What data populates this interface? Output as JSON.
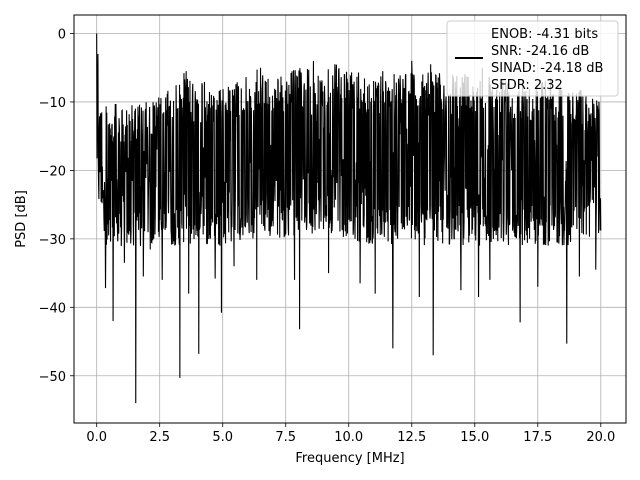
{
  "chart_data": {
    "type": "line",
    "title": "",
    "xlabel": "Frequency [MHz]",
    "ylabel": "PSD [dB]",
    "xlim": [
      -0.9,
      21.0
    ],
    "ylim": [
      -56.9,
      2.7
    ],
    "xticks": [
      0.0,
      2.5,
      5.0,
      7.5,
      10.0,
      12.5,
      15.0,
      17.5,
      20.0
    ],
    "xtick_labels": [
      "0.0",
      "2.5",
      "5.0",
      "7.5",
      "10.0",
      "12.5",
      "15.0",
      "17.5",
      "20.0"
    ],
    "yticks": [
      0,
      -10,
      -20,
      -30,
      -40,
      -50
    ],
    "ytick_labels": [
      "0",
      "−10",
      "−20",
      "−30",
      "−40",
      "−50"
    ],
    "grid": true,
    "legend_position": "top-right",
    "legend_text": [
      "ENOB: -4.31 bits",
      "SNR: -24.16 dB",
      "SINAD: -24.18 dB",
      "SFDR: 2.32"
    ],
    "series": [
      {
        "color": "#000000",
        "x_start": 0.0,
        "x_end": 20.0,
        "envelope_upper_x": [
          0.0,
          0.1,
          0.5,
          1.0,
          2.0,
          3.0,
          3.3,
          4.0,
          5.0,
          6.0,
          6.5,
          7.0,
          8.0,
          8.5,
          9.0,
          9.5,
          10.0,
          11.0,
          12.0,
          13.0,
          14.0,
          15.0,
          16.0,
          17.0,
          18.0,
          19.0,
          20.0
        ],
        "envelope_upper_y": [
          0.0,
          -9.5,
          -10.0,
          -10.5,
          -10.0,
          -8.0,
          -5.5,
          -6.5,
          -8.0,
          -6.0,
          -5.0,
          -6.5,
          -5.0,
          -4.0,
          -5.5,
          -4.5,
          -5.5,
          -6.0,
          -5.0,
          -5.5,
          -6.0,
          -5.5,
          -6.0,
          -7.0,
          -6.5,
          -8.0,
          -9.0
        ],
        "envelope_lower_x": [
          0.0,
          0.5,
          1.0,
          2.0,
          3.0,
          5.0,
          7.0,
          9.0,
          11.0,
          13.0,
          15.0,
          17.0,
          19.0,
          20.0
        ],
        "envelope_lower_y": [
          -24.0,
          -33.0,
          -31.0,
          -32.0,
          -31.0,
          -31.0,
          -30.0,
          -29.0,
          -31.0,
          -31.0,
          -31.0,
          -31.0,
          -31.0,
          -29.0
        ],
        "dips": [
          {
            "x": 0.35,
            "y": -37.2
          },
          {
            "x": 0.65,
            "y": -42.0
          },
          {
            "x": 1.1,
            "y": -33.5
          },
          {
            "x": 1.55,
            "y": -54.0
          },
          {
            "x": 1.85,
            "y": -35.5
          },
          {
            "x": 2.6,
            "y": -36.0
          },
          {
            "x": 3.3,
            "y": -50.3
          },
          {
            "x": 3.55,
            "y": -42.3
          },
          {
            "x": 3.65,
            "y": -38.0
          },
          {
            "x": 4.05,
            "y": -46.8
          },
          {
            "x": 4.7,
            "y": -35.8
          },
          {
            "x": 4.95,
            "y": -40.8
          },
          {
            "x": 5.45,
            "y": -34.0
          },
          {
            "x": 6.35,
            "y": -36.0
          },
          {
            "x": 7.85,
            "y": -36.0
          },
          {
            "x": 8.05,
            "y": -43.2
          },
          {
            "x": 9.2,
            "y": -35.0
          },
          {
            "x": 10.45,
            "y": -36.5
          },
          {
            "x": 11.05,
            "y": -38.0
          },
          {
            "x": 11.35,
            "y": -37.0
          },
          {
            "x": 11.75,
            "y": -46.0
          },
          {
            "x": 12.8,
            "y": -38.5
          },
          {
            "x": 13.35,
            "y": -47.0
          },
          {
            "x": 14.45,
            "y": -37.5
          },
          {
            "x": 15.15,
            "y": -38.5
          },
          {
            "x": 15.6,
            "y": -36.0
          },
          {
            "x": 16.8,
            "y": -42.2
          },
          {
            "x": 17.5,
            "y": -37.0
          },
          {
            "x": 18.65,
            "y": -45.3
          },
          {
            "x": 19.15,
            "y": -35.5
          },
          {
            "x": 19.8,
            "y": -34.5
          }
        ],
        "peaks": [
          {
            "x": 0.0,
            "y": 0.0
          },
          {
            "x": 0.05,
            "y": -3.0
          },
          {
            "x": 3.55,
            "y": -5.5
          },
          {
            "x": 6.5,
            "y": -5.0
          },
          {
            "x": 8.6,
            "y": -4.0
          },
          {
            "x": 9.45,
            "y": -4.5
          },
          {
            "x": 11.35,
            "y": -5.5
          },
          {
            "x": 12.5,
            "y": -4.0
          },
          {
            "x": 13.25,
            "y": -4.5
          },
          {
            "x": 15.3,
            "y": -5.0
          },
          {
            "x": 16.9,
            "y": -7.0
          },
          {
            "x": 18.0,
            "y": -6.5
          }
        ]
      }
    ]
  }
}
